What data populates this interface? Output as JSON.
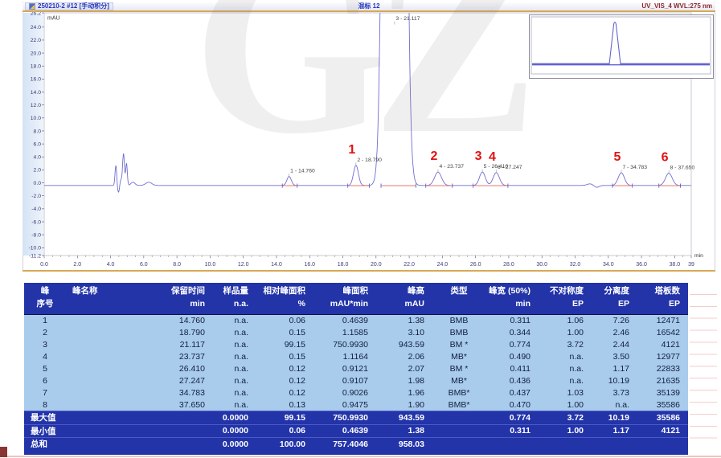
{
  "header": {
    "injection_label": "250210-2 #12 [手动积分]",
    "sample_label": "混标 12",
    "channel_label": "UV_VIS_4 WVL:275 nm"
  },
  "watermark_text": "GZ",
  "chart_data": {
    "type": "line",
    "title": "混标 12",
    "xlabel": "min",
    "ylabel": "mAU",
    "xlim": [
      0.0,
      39.0
    ],
    "ylim": [
      -11.2,
      26.2
    ],
    "grid": false,
    "legend": "none",
    "x_tick_labels": [
      "0.0",
      "2.0",
      "4.0",
      "6.0",
      "8.0",
      "10.0",
      "12.0",
      "14.0",
      "16.0",
      "18.0",
      "20.0",
      "22.0",
      "24.0",
      "26.0",
      "28.0",
      "30.0",
      "32.0",
      "34.0",
      "36.0",
      "38.0",
      "39"
    ],
    "y_tick_labels": [
      "-11.2",
      "-10.0",
      "-8.0",
      "-6.0",
      "-4.0",
      "-2.0",
      "0.0",
      "2.0",
      "4.0",
      "6.0",
      "8.0",
      "10.0",
      "12.0",
      "14.0",
      "16.0",
      "18.0",
      "20.0",
      "22.0",
      "24.0",
      "26.2"
    ],
    "baseline_mAU": -0.4,
    "peaks": [
      {
        "no": 1,
        "rt": 14.76,
        "height_mAU": 1.38,
        "width50_min": 0.311,
        "label": "1 - 14.760",
        "red_number": null
      },
      {
        "no": 2,
        "rt": 18.79,
        "height_mAU": 3.1,
        "width50_min": 0.344,
        "label": "2 - 18.790",
        "red_number": "1"
      },
      {
        "no": 3,
        "rt": 21.117,
        "height_mAU": 943.59,
        "width50_min": 0.774,
        "label": "3 - 21.117",
        "red_number": null
      },
      {
        "no": 4,
        "rt": 23.737,
        "height_mAU": 2.06,
        "width50_min": 0.49,
        "label": "4 - 23.737",
        "red_number": "2"
      },
      {
        "no": 5,
        "rt": 26.41,
        "height_mAU": 2.07,
        "width50_min": 0.411,
        "label": "5 - 26.410",
        "red_number": "3"
      },
      {
        "no": 6,
        "rt": 27.247,
        "height_mAU": 1.98,
        "width50_min": 0.436,
        "label": "6 - 27.247",
        "red_number": "4"
      },
      {
        "no": 7,
        "rt": 34.783,
        "height_mAU": 1.96,
        "width50_min": 0.437,
        "label": "7 - 34.783",
        "red_number": "5"
      },
      {
        "no": 8,
        "rt": 37.65,
        "height_mAU": 1.9,
        "width50_min": 0.47,
        "label": "8 - 37.650",
        "red_number": "6"
      }
    ],
    "unintegrated_features": [
      {
        "rt": 4.32,
        "h": 3.1,
        "sigma": 0.05
      },
      {
        "rt": 4.48,
        "h": -1.1,
        "sigma": 0.06
      },
      {
        "rt": 4.62,
        "h": 0.9,
        "sigma": 0.06
      },
      {
        "rt": 4.78,
        "h": 4.9,
        "sigma": 0.055
      },
      {
        "rt": 4.96,
        "h": 3.4,
        "sigma": 0.05
      },
      {
        "rt": 5.35,
        "h": 0.5,
        "sigma": 0.12
      },
      {
        "rt": 6.3,
        "h": 0.5,
        "sigma": 0.18
      },
      {
        "rt": 32.9,
        "h": 0.25,
        "sigma": 0.18
      },
      {
        "rt": 33.3,
        "h": -0.3,
        "sigma": 0.15
      }
    ],
    "integration_segments_min": [
      [
        14.35,
        15.25
      ],
      [
        18.3,
        19.6
      ],
      [
        20.3,
        22.4
      ],
      [
        23.0,
        24.6
      ],
      [
        25.85,
        27.95
      ],
      [
        34.25,
        35.45
      ],
      [
        37.05,
        38.35
      ]
    ]
  },
  "table": {
    "columns": [
      {
        "l1": "峰",
        "l2": "序号"
      },
      {
        "l1": "峰名称",
        "l2": ""
      },
      {
        "l1": "保留时间",
        "l2": "min"
      },
      {
        "l1": "样品量",
        "l2": "n.a."
      },
      {
        "l1": "相对峰面积",
        "l2": "%"
      },
      {
        "l1": "峰面积",
        "l2": "mAU*min"
      },
      {
        "l1": "峰高",
        "l2": "mAU"
      },
      {
        "l1": "类型",
        "l2": ""
      },
      {
        "l1": "峰宽 (50%)",
        "l2": "min"
      },
      {
        "l1": "不对称度",
        "l2": "EP"
      },
      {
        "l1": "分离度",
        "l2": "EP"
      },
      {
        "l1": "塔板数",
        "l2": "EP"
      }
    ],
    "rows": [
      {
        "no": "1",
        "name": "",
        "values": [
          "14.760",
          "n.a.",
          "0.06",
          "0.4639",
          "1.38",
          "BMB",
          "0.311",
          "1.06",
          "7.26",
          "12471"
        ]
      },
      {
        "no": "2",
        "name": "",
        "values": [
          "18.790",
          "n.a.",
          "0.15",
          "1.1585",
          "3.10",
          "BMB",
          "0.344",
          "1.00",
          "2.46",
          "16542"
        ]
      },
      {
        "no": "3",
        "name": "",
        "values": [
          "21.117",
          "n.a.",
          "99.15",
          "750.9930",
          "943.59",
          "BM *",
          "0.774",
          "3.72",
          "2.44",
          "4121"
        ]
      },
      {
        "no": "4",
        "name": "",
        "values": [
          "23.737",
          "n.a.",
          "0.15",
          "1.1164",
          "2.06",
          "MB*",
          "0.490",
          "n.a.",
          "3.50",
          "12977"
        ]
      },
      {
        "no": "5",
        "name": "",
        "values": [
          "26.410",
          "n.a.",
          "0.12",
          "0.9121",
          "2.07",
          "BM *",
          "0.411",
          "n.a.",
          "1.17",
          "22833"
        ]
      },
      {
        "no": "6",
        "name": "",
        "values": [
          "27.247",
          "n.a.",
          "0.12",
          "0.9107",
          "1.98",
          "MB*",
          "0.436",
          "n.a.",
          "10.19",
          "21635"
        ]
      },
      {
        "no": "7",
        "name": "",
        "values": [
          "34.783",
          "n.a.",
          "0.12",
          "0.9026",
          "1.96",
          "BMB*",
          "0.437",
          "1.03",
          "3.73",
          "35139"
        ]
      },
      {
        "no": "8",
        "name": "",
        "values": [
          "37.650",
          "n.a.",
          "0.13",
          "0.9475",
          "1.90",
          "BMB*",
          "0.470",
          "1.00",
          "n.a.",
          "35586"
        ]
      }
    ],
    "summary": [
      {
        "label": "最大值",
        "values": [
          "",
          "0.0000",
          "99.15",
          "750.9930",
          "943.59",
          "",
          "0.774",
          "3.72",
          "10.19",
          "35586"
        ]
      },
      {
        "label": "最小值",
        "values": [
          "",
          "0.0000",
          "0.06",
          "0.4639",
          "1.38",
          "",
          "0.311",
          "1.00",
          "1.17",
          "4121"
        ]
      },
      {
        "label": "总和",
        "values": [
          "",
          "0.0000",
          "100.00",
          "757.4046",
          "958.03",
          "",
          "",
          "",
          "",
          ""
        ]
      }
    ]
  }
}
